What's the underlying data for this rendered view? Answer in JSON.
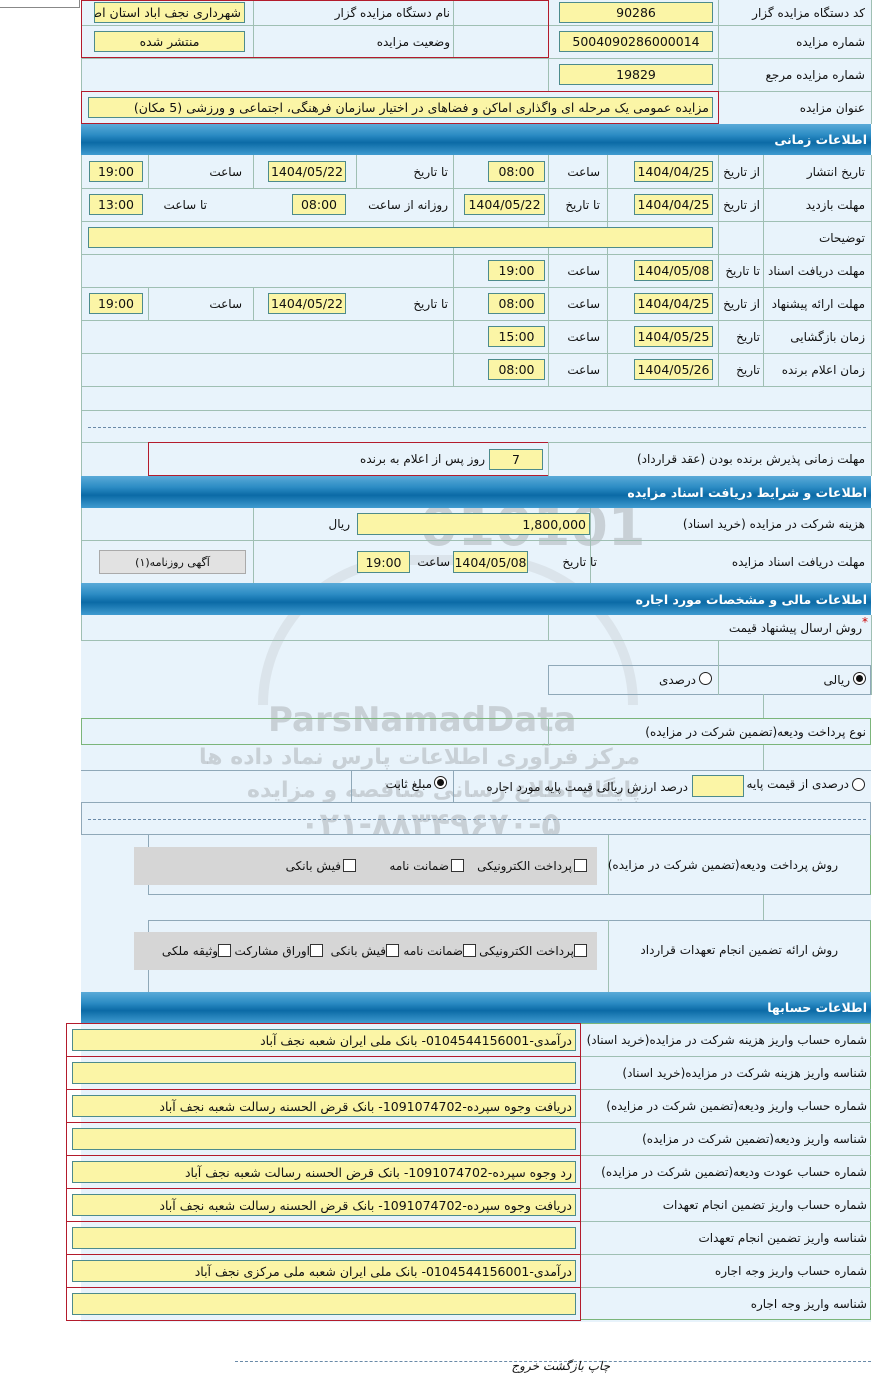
{
  "general": {
    "org_code_label": "کد دستگاه مزایده گزار",
    "org_code": "90286",
    "org_name_label": "نام دستگاه مزایده گزار",
    "org_name": "شهرداری نجف اباد استان اصف",
    "auction_no_label": "شماره مزایده",
    "auction_no": "5004090286000014",
    "status_label": "وضعیت مزایده",
    "status": "منتشر شده",
    "ref_no_label": "شماره مزایده مرجع",
    "ref_no": "19829",
    "title_label": "عنوان مزایده",
    "title": "مزایده عمومی یک مرحله ای واگذاری اماکن و فضاهای در اختیار سازمان فرهنگی، اجتماعی و ورزشی (5 مکان)"
  },
  "timing": {
    "header": "اطلاعات زمانی",
    "publish": {
      "label": "تاریخ انتشار",
      "from_label": "از تاریخ",
      "from_date": "1404/04/25",
      "time_label": "ساعت",
      "from_time": "08:00",
      "to_label": "تا تاریخ",
      "to_date": "1404/05/22",
      "time2_label": "ساعت",
      "to_time": "19:00"
    },
    "visit": {
      "label": "مهلت بازدید",
      "from_label": "از تاریخ",
      "from_date": "1404/04/25",
      "to_label": "تا تاریخ",
      "to_date": "1404/05/22",
      "daily_label": "روزانه از ساعت",
      "daily_from": "08:00",
      "until_label": "تا ساعت",
      "daily_to": "13:00"
    },
    "notes": {
      "label": "توضیحات",
      "value": ""
    },
    "docs": {
      "label": "مهلت دریافت اسناد",
      "to_label": "تا تاریخ",
      "to_date": "1404/05/08",
      "time_label": "ساعت",
      "to_time": "19:00"
    },
    "offer": {
      "label": "مهلت ارائه پیشنهاد",
      "from_label": "از تاریخ",
      "from_date": "1404/04/25",
      "time_label": "ساعت",
      "from_time": "08:00",
      "to_label": "تا تاریخ",
      "to_date": "1404/05/22",
      "time2_label": "ساعت",
      "to_time": "19:00"
    },
    "opening": {
      "label": "زمان بازگشایی",
      "date_label": "تاریخ",
      "date": "1404/05/25",
      "time_label": "ساعت",
      "time": "15:00"
    },
    "winner": {
      "label": "زمان اعلام برنده",
      "date_label": "تاریخ",
      "date": "1404/05/26",
      "time_label": "ساعت",
      "time": "08:00"
    },
    "accept": {
      "label": "مهلت زمانی پذیرش برنده بودن (عقد قرارداد)",
      "days": "7",
      "suffix": "روز پس از اعلام به برنده"
    }
  },
  "documents": {
    "header": "اطلاعات و شرایط دریافت اسناد مزایده",
    "fee_label": "هزینه شرکت در مزایده (خرید اسناد)",
    "fee": "1,800,000",
    "currency": "ریال",
    "deadline_label": "مهلت دریافت اسناد مزایده",
    "to_label": "تا تاریخ",
    "to_date": "1404/05/08",
    "time_label": "ساعت",
    "to_time": "19:00",
    "newspaper_button": "آگهی روزنامه(۱)"
  },
  "financial": {
    "header": "اطلاعات مالی و مشخصات مورد اجاره",
    "price_method_label": "روش ارسال پیشنهاد قیمت",
    "required_mark": "*",
    "price_options": [
      {
        "label": "ریالی",
        "selected": true
      },
      {
        "label": "درصدی",
        "selected": false
      }
    ],
    "deposit_type_label": "نوع پرداخت ودیعه(تضمین شرکت در مزایده)",
    "deposit_options": [
      {
        "label": "درصدی از قیمت پایه",
        "selected": false
      },
      {
        "label": "مبلغ ثابت",
        "selected": true
      }
    ],
    "percent_value": "",
    "percent_suffix": "درصد ارزش ریالی قیمت پایه مورد اجاره",
    "deposit_method_label": "روش پرداخت ودیعه(تضمین شرکت در مزایده)",
    "deposit_methods": [
      {
        "label": "پرداخت الکترونیکی",
        "checked": true
      },
      {
        "label": "ضمانت نامه",
        "checked": true
      },
      {
        "label": "فیش بانکی",
        "checked": true
      }
    ],
    "guarantee_label": "روش ارائه تضمین انجام تعهدات قرارداد",
    "guarantee_methods": [
      {
        "label": "پرداخت الکترونیکی",
        "checked": false
      },
      {
        "label": "ضمانت نامه",
        "checked": true
      },
      {
        "label": "فیش بانکی",
        "checked": true
      },
      {
        "label": "اوراق مشارکت",
        "checked": false
      },
      {
        "label": "وثیقه ملکی",
        "checked": false
      }
    ]
  },
  "accounts": {
    "header": "اطلاعات حسابها",
    "rows": [
      {
        "label": "شماره حساب واریز هزینه شرکت در مزایده(خرید اسناد)",
        "value": "درآمدی-0104544156001- بانک ملی ایران شعبه نجف آباد"
      },
      {
        "label": "شناسه واریز هزینه شرکت در مزایده(خرید اسناد)",
        "value": ""
      },
      {
        "label": "شماره حساب واریز ودیعه(تضمین شرکت در مزایده)",
        "value": "دریافت وجوه سپرده-1091074702- بانک قرض الحسنه رسالت شعبه نجف آباد"
      },
      {
        "label": "شناسه واریز ودیعه(تضمین شرکت در مزایده)",
        "value": ""
      },
      {
        "label": "شماره حساب عودت ودیعه(تضمین شرکت در مزایده)",
        "value": "رد وجوه سپرده-1091074702- بانک قرض الحسنه رسالت شعبه نجف آباد"
      },
      {
        "label": "شماره حساب واریز تضمین انجام تعهدات",
        "value": "دریافت وجوه سپرده-1091074702- بانک قرض الحسنه رسالت شعبه نجف آباد"
      },
      {
        "label": "شناسه واریز تضمین انجام تعهدات",
        "value": ""
      },
      {
        "label": "شماره حساب واریز وجه اجاره",
        "value": "درآمدی-0104544156001- بانک ملی ایران شعبه ملی مرکزی نجف آباد"
      },
      {
        "label": "شناسه واریز وجه اجاره",
        "value": ""
      }
    ]
  },
  "footer": {
    "links": "چاپ بازگشت خروج"
  },
  "watermark": {
    "brand": "ParsNamadData",
    "line1": "مرکز فرآوری اطلاعات پارس نماد داده ها",
    "line2": "پایگاه اطلاع رسانی مناقصه و مزایده",
    "phone": "۰۲۱-۸۸۳۴۹۶۷۰-۵",
    "digits": "010101"
  }
}
